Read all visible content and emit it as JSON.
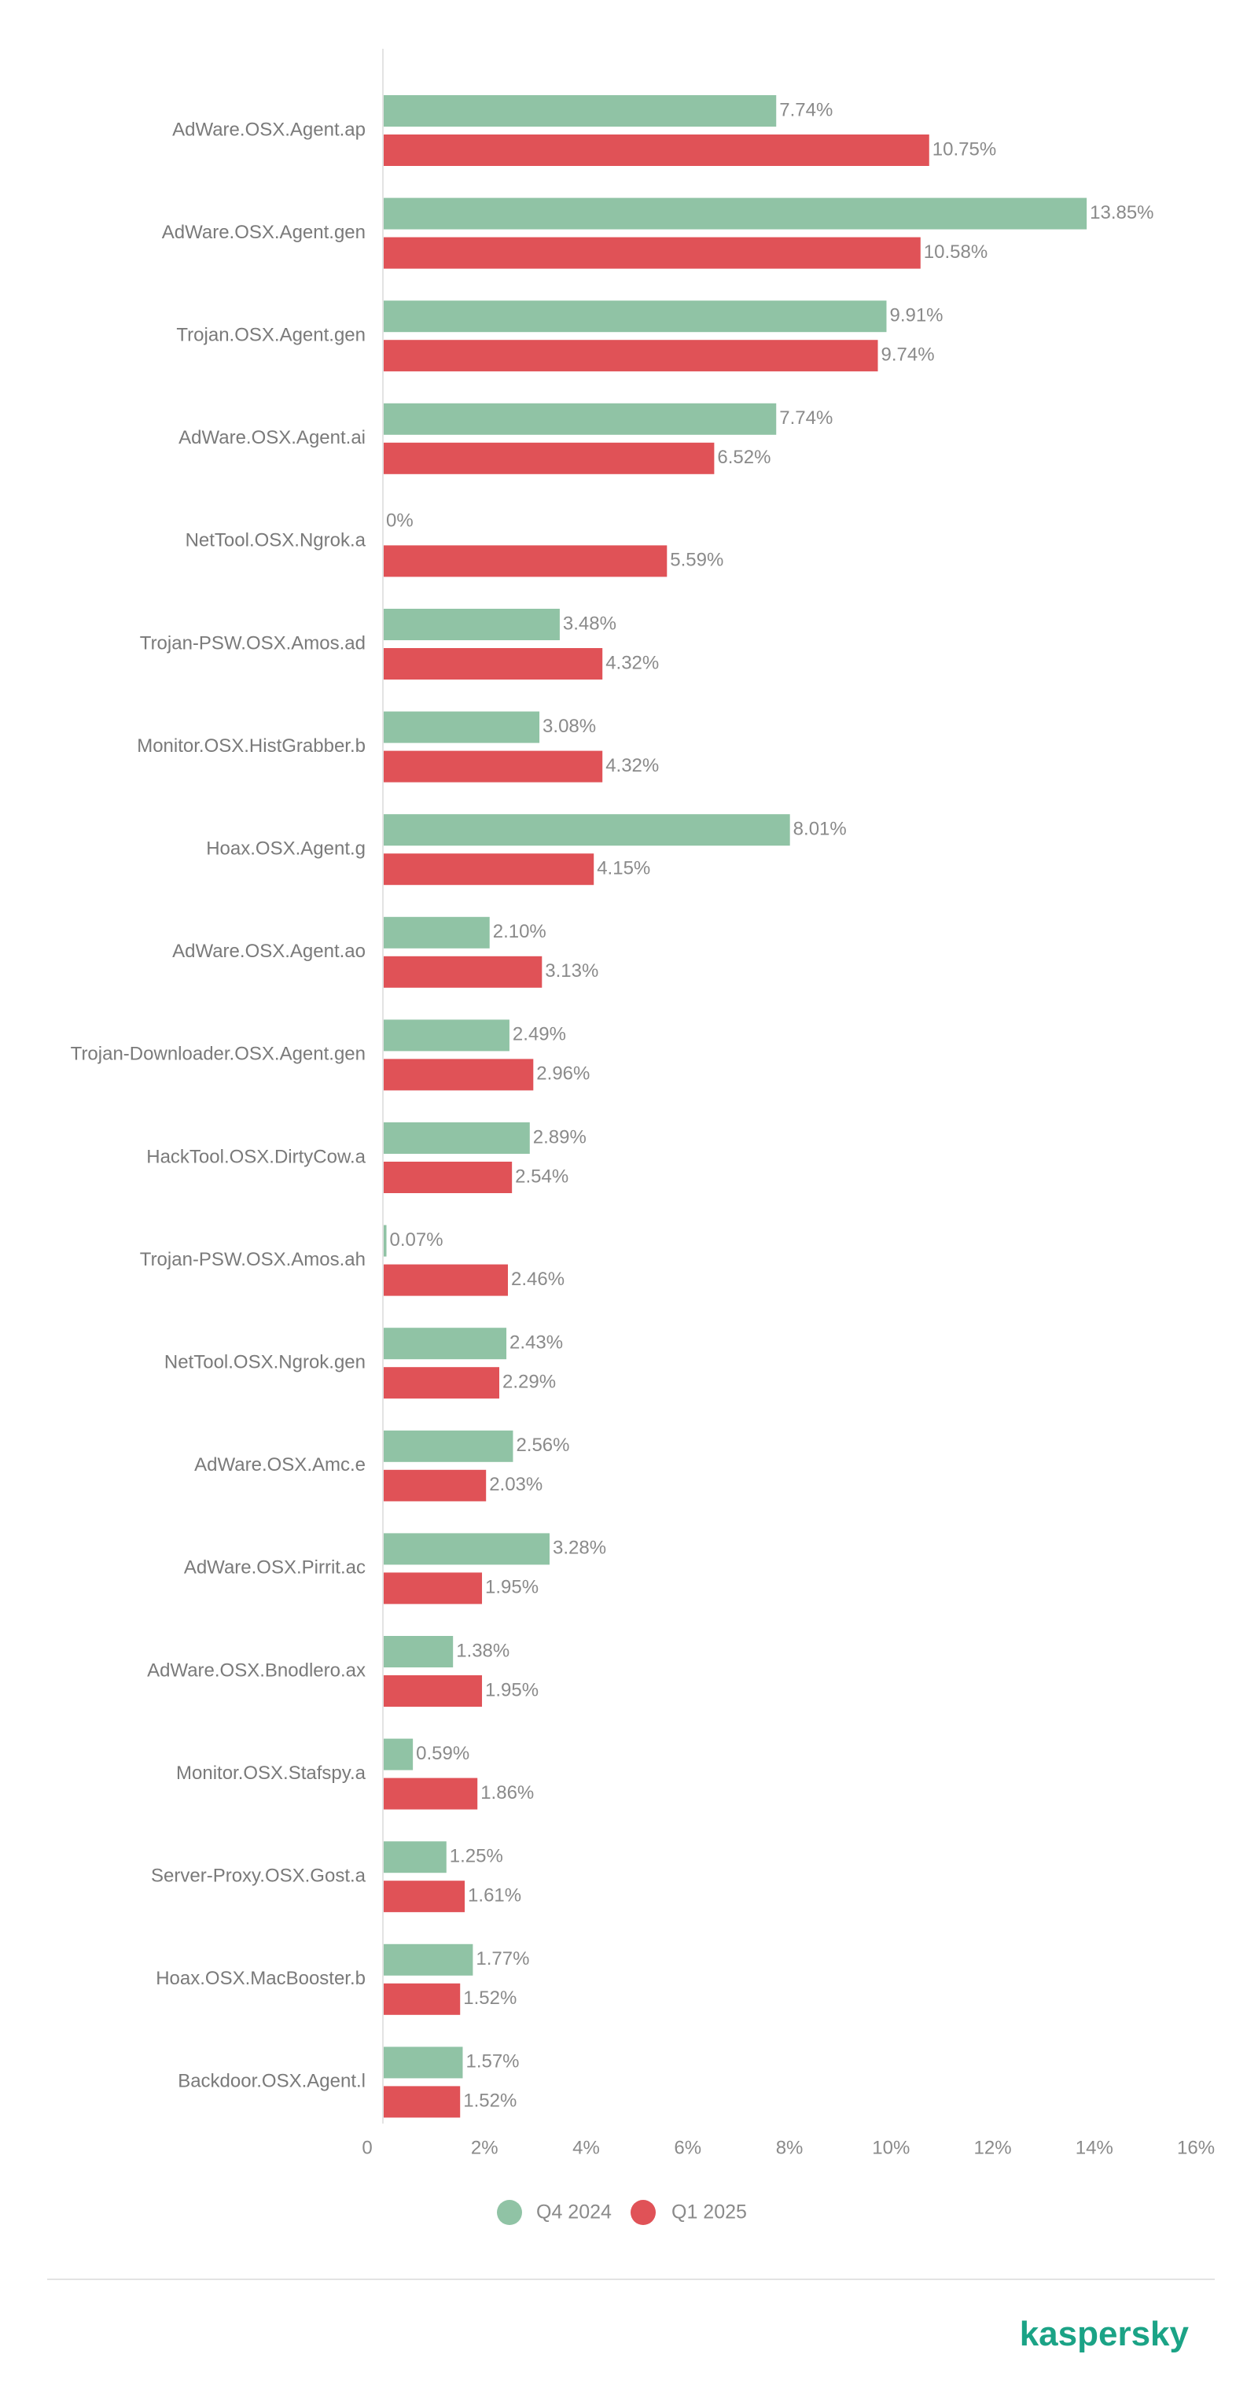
{
  "colors": {
    "q4": "#90c3a5",
    "q1": "#e05257",
    "axis": "#e3e3e3",
    "brand": "#1ba386"
  },
  "chart_data": {
    "type": "bar",
    "orientation": "horizontal",
    "title": "",
    "xlabel": "",
    "ylabel": "",
    "xlim": [
      0,
      16
    ],
    "ticks": [
      "0",
      "2%",
      "4%",
      "6%",
      "8%",
      "10%",
      "12%",
      "14%",
      "16%"
    ],
    "grid": false,
    "legend_position": "bottom-center",
    "categories": [
      "AdWare.OSX.Agent.ap",
      "AdWare.OSX.Agent.gen",
      "Trojan.OSX.Agent.gen",
      "AdWare.OSX.Agent.ai",
      "NetTool.OSX.Ngrok.a",
      "Trojan-PSW.OSX.Amos.ad",
      "Monitor.OSX.HistGrabber.b",
      "Hoax.OSX.Agent.g",
      "AdWare.OSX.Agent.ao",
      "Trojan-Downloader.OSX.Agent.gen",
      "HackTool.OSX.DirtyCow.a",
      "Trojan-PSW.OSX.Amos.ah",
      "NetTool.OSX.Ngrok.gen",
      "AdWare.OSX.Amc.e",
      "AdWare.OSX.Pirrit.ac",
      "AdWare.OSX.Bnodlero.ax",
      "Monitor.OSX.Stafspy.a",
      "Server-Proxy.OSX.Gost.a",
      "Hoax.OSX.MacBooster.b",
      "Backdoor.OSX.Agent.l"
    ],
    "series": [
      {
        "name": "Q4 2024",
        "values": [
          7.74,
          13.85,
          9.91,
          7.74,
          0,
          3.48,
          3.08,
          8.01,
          2.1,
          2.49,
          2.89,
          0.07,
          2.43,
          2.56,
          3.28,
          1.38,
          0.59,
          1.25,
          1.77,
          1.57
        ],
        "labels": [
          "7.74%",
          "13.85%",
          "9.91%",
          "7.74%",
          "0%",
          "3.48%",
          "3.08%",
          "8.01%",
          "2.10%",
          "2.49%",
          "2.89%",
          "0.07%",
          "2.43%",
          "2.56%",
          "3.28%",
          "1.38%",
          "0.59%",
          "1.25%",
          "1.77%",
          "1.57%"
        ]
      },
      {
        "name": "Q1 2025",
        "values": [
          10.75,
          10.58,
          9.74,
          6.52,
          5.59,
          4.32,
          4.32,
          4.15,
          3.13,
          2.96,
          2.54,
          2.46,
          2.29,
          2.03,
          1.95,
          1.95,
          1.86,
          1.61,
          1.52,
          1.52
        ],
        "labels": [
          "10.75%",
          "10.58%",
          "9.74%",
          "6.52%",
          "5.59%",
          "4.32%",
          "4.32%",
          "4.15%",
          "3.13%",
          "2.96%",
          "2.54%",
          "2.46%",
          "2.29%",
          "2.03%",
          "1.95%",
          "1.95%",
          "1.86%",
          "1.61%",
          "1.52%",
          "1.52%"
        ]
      }
    ]
  },
  "brand": {
    "logo_text": "kaspersky"
  }
}
